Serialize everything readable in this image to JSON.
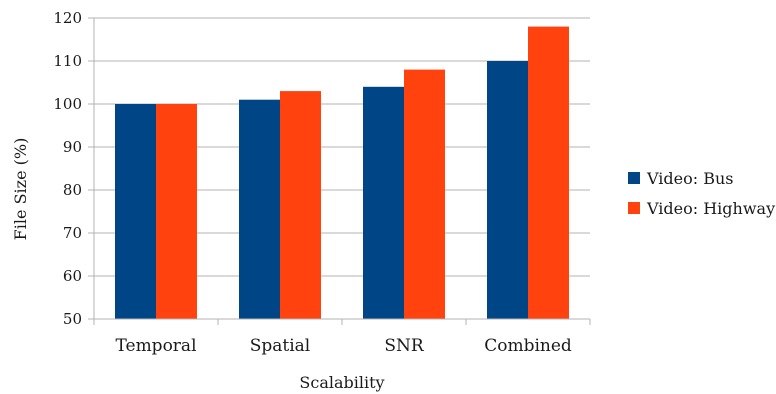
{
  "chart_data": {
    "type": "bar",
    "categories": [
      "Temporal",
      "Spatial",
      "SNR",
      "Combined"
    ],
    "series": [
      {
        "name": "Video: Bus",
        "color": "#004586",
        "values": [
          100,
          101,
          104,
          110
        ]
      },
      {
        "name": "Video: Highway",
        "color": "#ff420e",
        "values": [
          100,
          103,
          108,
          118
        ]
      }
    ],
    "xlabel": "Scalability",
    "ylabel": "File Size (%)",
    "ylim": [
      50,
      120
    ],
    "yticks": [
      50,
      60,
      70,
      80,
      90,
      100,
      110,
      120
    ],
    "grid": true,
    "legend_position": "right"
  }
}
